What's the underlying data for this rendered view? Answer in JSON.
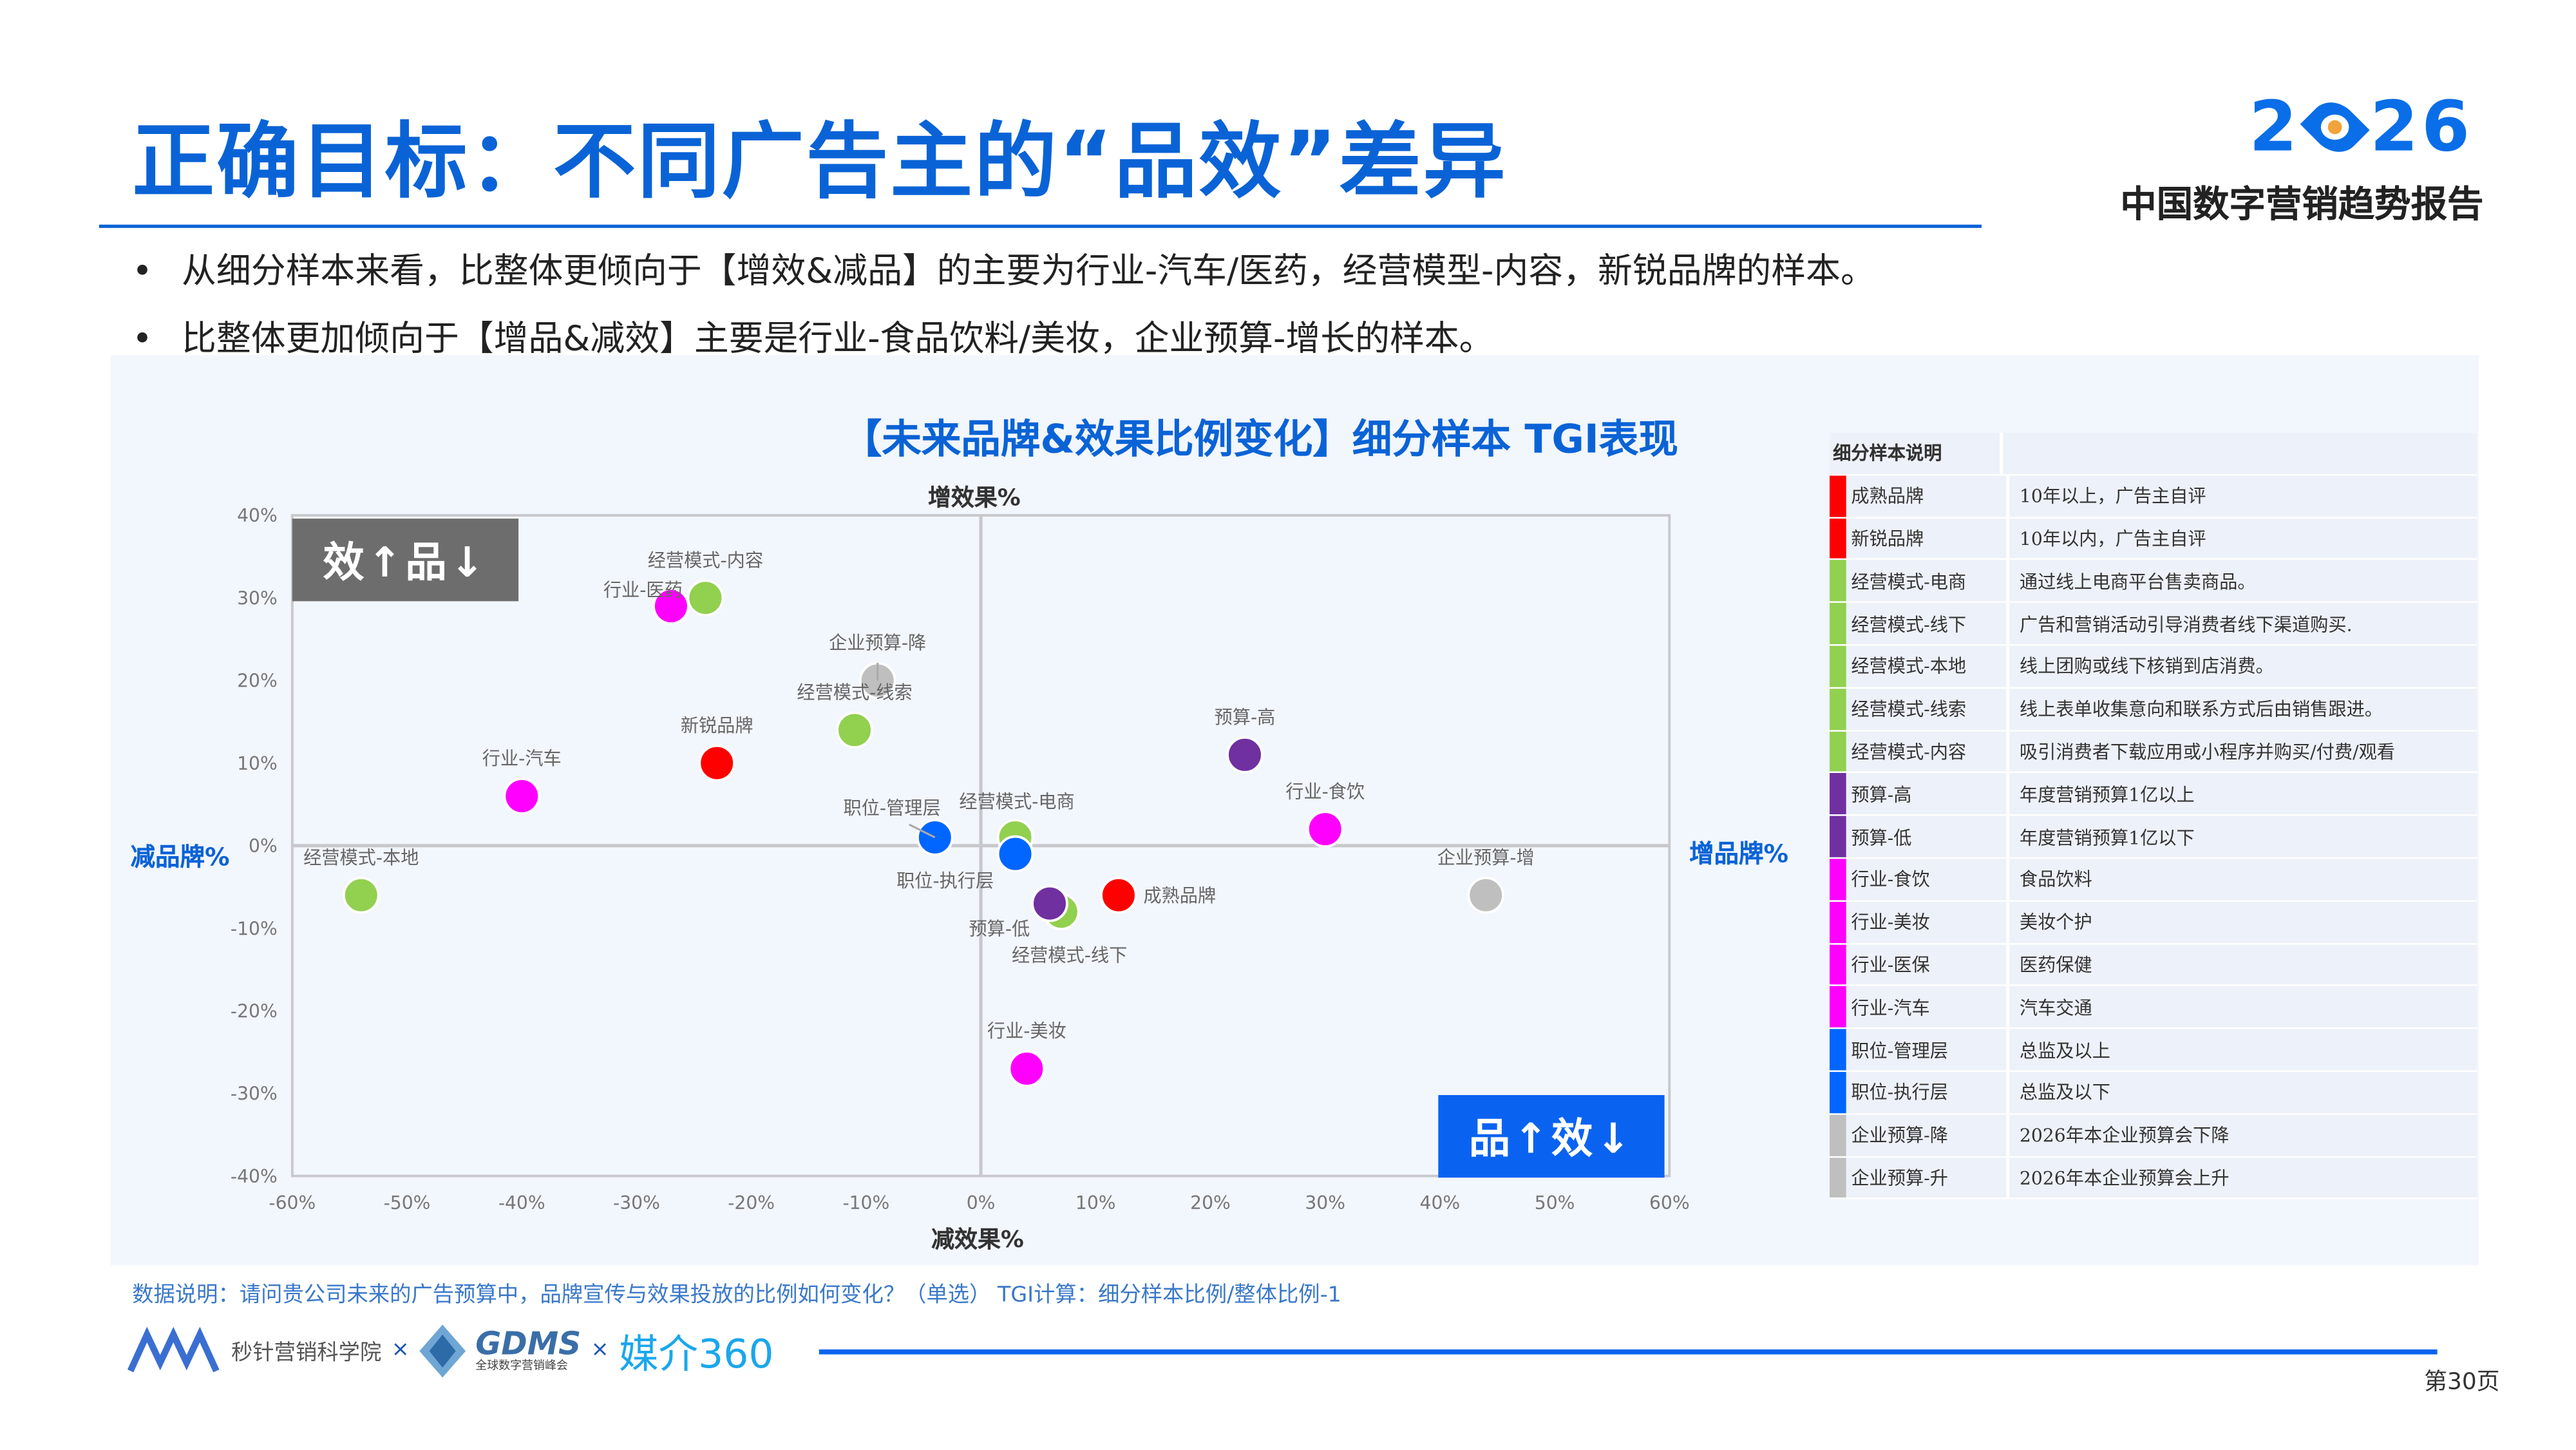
{
  "header": {
    "title": "正确目标：不同广告主的“品效”差异",
    "logo_year": [
      "2",
      "26"
    ],
    "logo_subtitle": "中国数字营销趋势报告"
  },
  "bullets": [
    "从细分样本来看，比整体更倾向于【增效&减品】的主要为行业-汽车/医药，经营模型-内容，新锐品牌的样本。",
    "比整体更加倾向于【增品&减效】主要是行业-食品饮料/美妆，企业预算-增长的样本。"
  ],
  "bullet_marker": "•",
  "chart_data": {
    "type": "scatter",
    "title": "【未来品牌&效果比例变化】细分样本  TGI表现",
    "xlabel_top": "增效果%",
    "xlabel_bottom": "减效果%",
    "ylabel_left": "减品牌%",
    "ylabel_right": "增品牌%",
    "xlim": [
      -60,
      60
    ],
    "ylim": [
      -40,
      40
    ],
    "x_ticks": [
      "-60%",
      "-50%",
      "-40%",
      "-30%",
      "-20%",
      "-10%",
      "0%",
      "10%",
      "20%",
      "30%",
      "40%",
      "50%",
      "60%"
    ],
    "y_ticks": [
      "40%",
      "30%",
      "20%",
      "10%",
      "0%",
      "-10%",
      "-20%",
      "-30%",
      "-40%"
    ],
    "grid": false,
    "quadrant_top_left": "效↑品↓",
    "quadrant_bottom_right": "品↑效↓",
    "points": [
      {
        "label": "经营模式-本地",
        "x": -54,
        "y": -6,
        "color": "#92d050"
      },
      {
        "label": "行业-汽车",
        "x": -40,
        "y": 6,
        "color": "#ff00ff"
      },
      {
        "label": "行业-医药",
        "x": -27,
        "y": 29,
        "color": "#ff00ff"
      },
      {
        "label": "经营模式-内容",
        "x": -24,
        "y": 30,
        "color": "#92d050"
      },
      {
        "label": "新锐品牌",
        "x": -23,
        "y": 10,
        "color": "#ff0000"
      },
      {
        "label": "企业预算-降",
        "x": -9,
        "y": 20,
        "color": "#bfbfbf"
      },
      {
        "label": "经营模式-线索",
        "x": -11,
        "y": 14,
        "color": "#92d050"
      },
      {
        "label": "职位-管理层",
        "x": -4,
        "y": 1,
        "color": "#0066ff"
      },
      {
        "label": "经营模式-电商",
        "x": 3,
        "y": 1,
        "color": "#92d050"
      },
      {
        "label": "经营模式-线下",
        "x": 7,
        "y": -8,
        "color": "#92d050"
      },
      {
        "label": "职位-执行层",
        "x": 3,
        "y": -1,
        "color": "#0066ff"
      },
      {
        "label": "预算-低",
        "x": 6,
        "y": -7,
        "color": "#7030a0"
      },
      {
        "label": "成熟品牌",
        "x": 12,
        "y": -6,
        "color": "#ff0000"
      },
      {
        "label": "预算-高",
        "x": 23,
        "y": 11,
        "color": "#7030a0"
      },
      {
        "label": "行业-食饮",
        "x": 30,
        "y": 2,
        "color": "#ff00ff"
      },
      {
        "label": "企业预算-增",
        "x": 44,
        "y": -6,
        "color": "#bfbfbf"
      },
      {
        "label": "行业-美妆",
        "x": 4,
        "y": -27,
        "color": "#ff00ff"
      }
    ]
  },
  "legend": {
    "header": "细分样本说明",
    "rows": [
      {
        "name": "成熟品牌",
        "desc": "10年以上，广告主自评",
        "color": "#ff0000"
      },
      {
        "name": "新锐品牌",
        "desc": "10年以内，广告主自评",
        "color": "#ff0000"
      },
      {
        "name": "经营模式-电商",
        "desc": "通过线上电商平台售卖商品。",
        "color": "#92d050"
      },
      {
        "name": "经营模式-线下",
        "desc": "广告和营销活动引导消费者线下渠道购买.",
        "color": "#92d050"
      },
      {
        "name": "经营模式-本地",
        "desc": "线上团购或线下核销到店消费。",
        "color": "#92d050"
      },
      {
        "name": "经营模式-线索",
        "desc": "线上表单收集意向和联系方式后由销售跟进。",
        "color": "#92d050"
      },
      {
        "name": "经营模式-内容",
        "desc": "吸引消费者下载应用或小程序并购买/付费/观看",
        "color": "#92d050"
      },
      {
        "name": "预算-高",
        "desc": "年度营销预算1亿以上",
        "color": "#7030a0"
      },
      {
        "name": "预算-低",
        "desc": "年度营销预算1亿以下",
        "color": "#7030a0"
      },
      {
        "name": "行业-食饮",
        "desc": "食品饮料",
        "color": "#ff00ff"
      },
      {
        "name": "行业-美妆",
        "desc": "美妆个护",
        "color": "#ff00ff"
      },
      {
        "name": "行业-医保",
        "desc": "医药保健",
        "color": "#ff00ff"
      },
      {
        "name": "行业-汽车",
        "desc": "汽车交通",
        "color": "#ff00ff"
      },
      {
        "name": "职位-管理层",
        "desc": "总监及以上",
        "color": "#0066ff"
      },
      {
        "name": "职位-执行层",
        "desc": "总监及以下",
        "color": "#0066ff"
      },
      {
        "name": "企业预算-降",
        "desc": "2026年本企业预算会下降",
        "color": "#bfbfbf"
      },
      {
        "name": "企业预算-升",
        "desc": "2026年本企业预算会上升",
        "color": "#bfbfbf"
      }
    ]
  },
  "footer": {
    "note": "数据说明：请问贵公司未来的广告预算中，品牌宣传与效果投放的比例如何变化？（单选） TGI计算：细分样本比例/整体比例-1",
    "partner1": "秒针营销科学院",
    "separator": "×",
    "partner2": "GDMS",
    "partner2_sub": "全球数字营销峰会",
    "partner3": "媒介360",
    "page": "第30页"
  },
  "colors": {
    "brand_blue": "#0a63d6",
    "panel_bg": "#f2f6fd"
  }
}
